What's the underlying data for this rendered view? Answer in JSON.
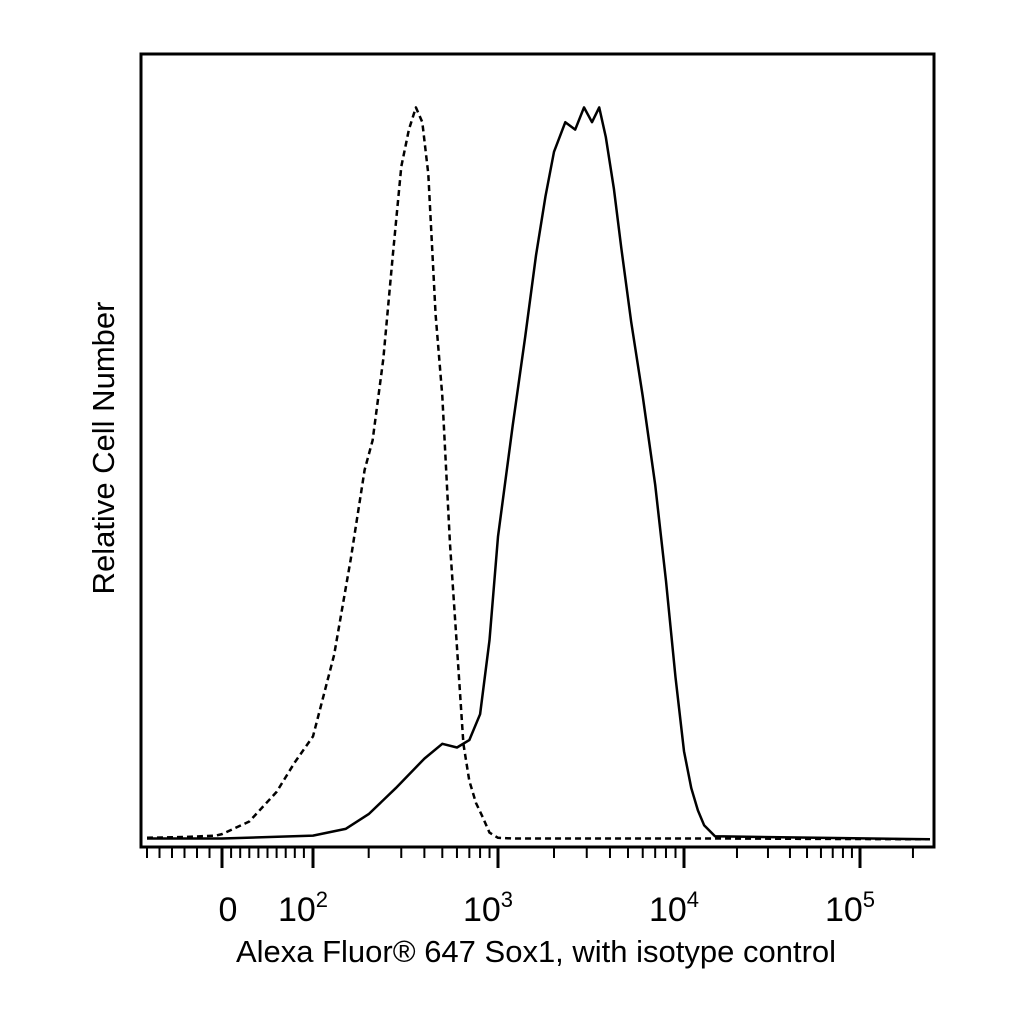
{
  "chart_data": {
    "type": "line",
    "title": "",
    "xlabel": "Alexa Fluor® 647 Sox1, with isotype control",
    "ylabel": "Relative Cell Number",
    "x_scale": "biexponential",
    "xlim": [
      -60,
      250000
    ],
    "ylim": [
      0,
      100
    ],
    "grid": false,
    "legend": "none",
    "x_ticks": [
      {
        "value": 0,
        "base": "0",
        "exp": ""
      },
      {
        "value": 100,
        "base": "10",
        "exp": "2"
      },
      {
        "value": 1000,
        "base": "10",
        "exp": "3"
      },
      {
        "value": 10000,
        "base": "10",
        "exp": "4"
      },
      {
        "value": 100000,
        "base": "10",
        "exp": "5"
      }
    ],
    "series": [
      {
        "style": "dashed",
        "color": "#000000",
        "x": [
          -60,
          -30,
          -5,
          0,
          30,
          60,
          80,
          100,
          130,
          160,
          190,
          210,
          240,
          270,
          300,
          330,
          360,
          390,
          420,
          460,
          500,
          550,
          600,
          650,
          700,
          760,
          830,
          900,
          1000,
          1200,
          2000,
          5000,
          15000,
          250000
        ],
        "y": [
          0.3,
          0.4,
          0.6,
          0.8,
          2.5,
          6.5,
          10.5,
          14,
          25,
          38,
          50,
          54,
          65,
          79,
          91,
          96,
          99,
          97,
          90,
          71,
          60,
          40,
          26,
          13,
          8,
          5,
          3,
          1,
          0.3,
          0.2,
          0.2,
          0.2,
          0.2,
          0.1
        ]
      },
      {
        "style": "solid",
        "color": "#000000",
        "x": [
          -60,
          0,
          100,
          150,
          200,
          280,
          400,
          500,
          600,
          700,
          800,
          900,
          1000,
          1200,
          1400,
          1600,
          1800,
          2000,
          2300,
          2600,
          2900,
          3200,
          3500,
          3800,
          4200,
          4600,
          5200,
          6000,
          7000,
          8000,
          9000,
          10000,
          11000,
          12000,
          13000,
          15000,
          250000
        ],
        "y": [
          0.2,
          0.2,
          0.6,
          1.5,
          3.5,
          7,
          11,
          13,
          12.5,
          13.5,
          17,
          27,
          41,
          56,
          68,
          79,
          87,
          93,
          97,
          96,
          99,
          97,
          99,
          95,
          88,
          80,
          70,
          60,
          48,
          35,
          22,
          12,
          7,
          4,
          2,
          0.5,
          0.1
        ]
      }
    ]
  }
}
